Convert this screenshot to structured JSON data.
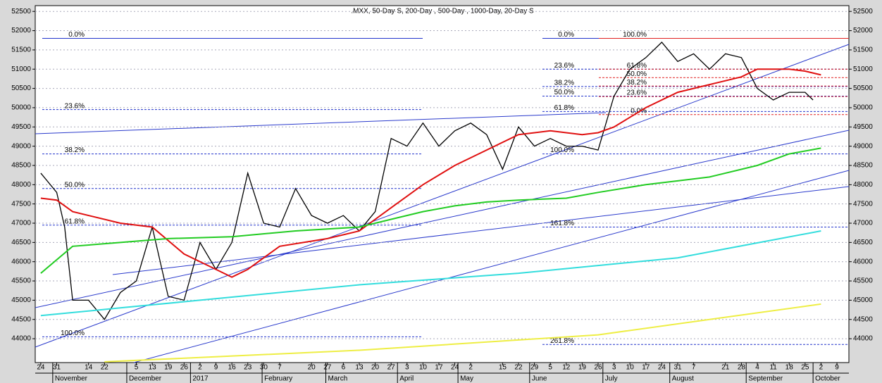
{
  "chart_data": {
    "type": "line",
    "title": ".MXX, 50-Day S, 200-Day , 500-Day , 1000-Day, 20-Day S",
    "xlim": [
      -0.35,
      50.75
    ],
    "ylim": [
      43380,
      52650
    ],
    "yticks": [
      44000,
      44500,
      45000,
      45500,
      46000,
      46500,
      47000,
      47500,
      48000,
      48500,
      49000,
      49500,
      50000,
      50500,
      51000,
      51500,
      52000,
      52500
    ],
    "grid": true,
    "xticks": [
      {
        "value": 0,
        "label": "24"
      },
      {
        "value": 1,
        "label": "31"
      },
      {
        "value": 3,
        "label": "14"
      },
      {
        "value": 4,
        "label": "22"
      },
      {
        "value": 6,
        "label": "5"
      },
      {
        "value": 7,
        "label": "13"
      },
      {
        "value": 8,
        "label": "19"
      },
      {
        "value": 9,
        "label": "26"
      },
      {
        "value": 10,
        "label": "2"
      },
      {
        "value": 11,
        "label": "9"
      },
      {
        "value": 12,
        "label": "16"
      },
      {
        "value": 13,
        "label": "23"
      },
      {
        "value": 14,
        "label": "30"
      },
      {
        "value": 15,
        "label": "7"
      },
      {
        "value": 17,
        "label": "20"
      },
      {
        "value": 18,
        "label": "27"
      },
      {
        "value": 19,
        "label": "6"
      },
      {
        "value": 20,
        "label": "13"
      },
      {
        "value": 21,
        "label": "20"
      },
      {
        "value": 22,
        "label": "27"
      },
      {
        "value": 23,
        "label": "3"
      },
      {
        "value": 24,
        "label": "10"
      },
      {
        "value": 25,
        "label": "17"
      },
      {
        "value": 26,
        "label": "24"
      },
      {
        "value": 27,
        "label": "2"
      },
      {
        "value": 29,
        "label": "15"
      },
      {
        "value": 30,
        "label": "22"
      },
      {
        "value": 31,
        "label": "29"
      },
      {
        "value": 32,
        "label": "5"
      },
      {
        "value": 33,
        "label": "12"
      },
      {
        "value": 34,
        "label": "19"
      },
      {
        "value": 35,
        "label": "26"
      },
      {
        "value": 36,
        "label": "3"
      },
      {
        "value": 37,
        "label": "10"
      },
      {
        "value": 38,
        "label": "17"
      },
      {
        "value": 39,
        "label": "24"
      },
      {
        "value": 40,
        "label": "31"
      },
      {
        "value": 41,
        "label": "7"
      },
      {
        "value": 43,
        "label": "21"
      },
      {
        "value": 44,
        "label": "28"
      },
      {
        "value": 45,
        "label": "4"
      },
      {
        "value": 46,
        "label": "11"
      },
      {
        "value": 47,
        "label": "18"
      },
      {
        "value": 48,
        "label": "25"
      },
      {
        "value": 49,
        "label": "2"
      },
      {
        "value": 50,
        "label": "9"
      }
    ],
    "month_ticks": [
      {
        "value": 0.75,
        "label": "November"
      },
      {
        "value": 5.4,
        "label": "December"
      },
      {
        "value": 9.4,
        "label": "2017"
      },
      {
        "value": 13.9,
        "label": "February"
      },
      {
        "value": 17.9,
        "label": "March"
      },
      {
        "value": 22.4,
        "label": "April"
      },
      {
        "value": 26.2,
        "label": "May"
      },
      {
        "value": 30.7,
        "label": "June"
      },
      {
        "value": 35.3,
        "label": "July"
      },
      {
        "value": 39.5,
        "label": "August"
      },
      {
        "value": 44.3,
        "label": "September"
      },
      {
        "value": 48.5,
        "label": "October"
      }
    ],
    "series": [
      {
        "color": "#000000",
        "x": [
          0,
          1,
          1.5,
          2,
          3,
          4,
          5,
          6,
          7,
          8,
          9,
          10,
          11,
          12,
          13,
          14,
          15,
          16,
          17,
          18,
          19,
          20,
          21,
          22,
          23,
          24,
          25,
          26,
          27,
          28,
          29,
          30,
          31,
          32,
          33,
          34,
          35,
          36,
          37,
          38,
          39,
          40,
          41,
          42,
          43,
          44,
          45,
          46,
          47,
          48,
          48.5
        ],
        "values": [
          48300,
          47800,
          46900,
          45000,
          45000,
          44500,
          45200,
          45500,
          46900,
          45100,
          45000,
          46500,
          45800,
          46500,
          48300,
          47000,
          46900,
          47900,
          47200,
          47000,
          47200,
          46800,
          47300,
          49200,
          49000,
          49600,
          49000,
          49400,
          49600,
          49300,
          48400,
          49500,
          49000,
          49200,
          49000,
          49000,
          48900,
          50300,
          51000,
          51300,
          51700,
          51200,
          51400,
          51000,
          51400,
          51300,
          50500,
          50200,
          50400,
          50400,
          50200
        ]
      },
      {
        "color": "#e01010",
        "x": [
          0,
          1,
          2,
          5,
          7,
          9,
          11,
          12,
          13,
          15,
          18,
          20,
          22,
          24,
          26,
          28,
          30,
          32,
          34,
          35,
          36,
          38,
          40,
          42,
          44,
          45,
          47,
          48,
          49
        ],
        "values": [
          47650,
          47600,
          47300,
          47000,
          46900,
          46200,
          45800,
          45600,
          45800,
          46400,
          46600,
          46800,
          47400,
          48000,
          48500,
          48900,
          49300,
          49400,
          49300,
          49350,
          49500,
          50000,
          50400,
          50600,
          50800,
          51000,
          51000,
          50950,
          50850
        ]
      },
      {
        "color": "#22cc22",
        "x": [
          0,
          2,
          5,
          8,
          12,
          16,
          20,
          22,
          24,
          26,
          28,
          30,
          33,
          35,
          38,
          40,
          42,
          45,
          47,
          49
        ],
        "values": [
          45700,
          46400,
          46500,
          46600,
          46650,
          46800,
          46900,
          47100,
          47300,
          47450,
          47550,
          47600,
          47650,
          47800,
          48000,
          48100,
          48200,
          48500,
          48800,
          48950
        ]
      },
      {
        "color": "#33dddd",
        "x": [
          0,
          5,
          10,
          20,
          30,
          40,
          49
        ],
        "values": [
          44600,
          44800,
          45000,
          45400,
          45700,
          46100,
          46800
        ]
      },
      {
        "color": "#eeee44",
        "x": [
          4,
          20,
          35,
          49
        ],
        "values": [
          43400,
          43700,
          44100,
          44900
        ]
      }
    ],
    "fib_sets": [
      {
        "color": "#2233cc",
        "levels": [
          {
            "label": "0.0%",
            "value": 51800
          },
          {
            "label": "23.6%",
            "value": 49950
          },
          {
            "label": "38.2%",
            "value": 48800
          },
          {
            "label": "50.0%",
            "value": 47900
          },
          {
            "label": "61.8%",
            "value": 46950
          },
          {
            "label": "100.0%",
            "value": 44050
          }
        ]
      },
      {
        "color": "#2233cc",
        "levels": [
          {
            "label": "0.0%",
            "value": 51800
          },
          {
            "label": "23.6%",
            "value": 51000
          },
          {
            "label": "38.2%",
            "value": 50550
          },
          {
            "label": "50.0%",
            "value": 50300
          },
          {
            "label": "61.8%",
            "value": 49900
          },
          {
            "label": "100.0%",
            "value": 48800
          },
          {
            "label": "161.8%",
            "value": 46900
          },
          {
            "label": "261.8%",
            "value": 43850
          }
        ]
      },
      {
        "color": "#e02020",
        "levels": [
          {
            "label": "100.0%",
            "value": 51800
          },
          {
            "label": "61.8%",
            "value": 51000
          },
          {
            "label": "50.0%",
            "value": 50780
          },
          {
            "label": "38.2%",
            "value": 50560
          },
          {
            "label": "23.6%",
            "value": 50290
          },
          {
            "label": "0.0%",
            "value": 49820
          }
        ]
      }
    ]
  }
}
